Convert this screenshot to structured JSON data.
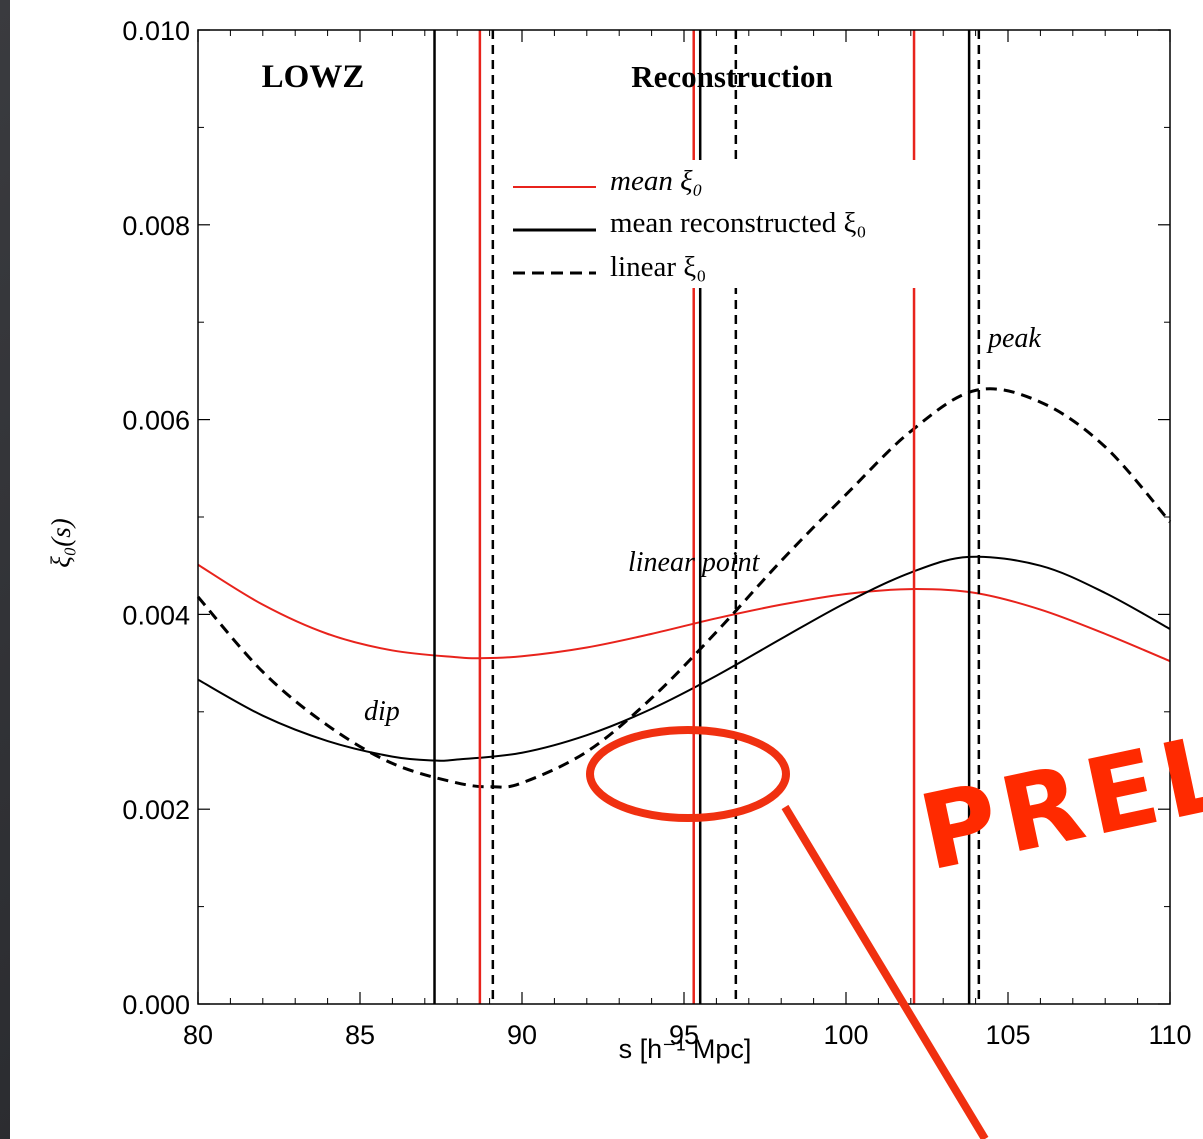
{
  "chart_data": {
    "type": "line",
    "title": "LOWZ",
    "subtitle": "Reconstruction",
    "xlabel": "s  [h⁻¹ Mpc]",
    "ylabel": "ξ₀(s)",
    "xlim": [
      80,
      110
    ],
    "ylim": [
      0,
      0.01
    ],
    "xticks": [
      80,
      85,
      90,
      95,
      100,
      105,
      110
    ],
    "yticks": [
      0.0,
      0.002,
      0.004,
      0.006,
      0.008,
      0.01
    ],
    "ytick_labels": [
      "0.000",
      "0.002",
      "0.004",
      "0.006",
      "0.008",
      "0.010"
    ],
    "xtick_labels": [
      "80",
      "85",
      "90",
      "95",
      "100",
      "105",
      "110"
    ],
    "grid": false,
    "legend_position": "upper-center",
    "series": [
      {
        "name": "mean ξ₀",
        "color": "#e8231c",
        "style": "solid",
        "x": [
          80,
          82,
          84,
          86,
          88,
          88.7,
          90,
          92,
          94,
          96,
          98,
          100,
          102,
          104,
          106,
          108,
          110
        ],
        "y": [
          0.00451,
          0.0041,
          0.0038,
          0.00363,
          0.00356,
          0.00355,
          0.00357,
          0.00366,
          0.0038,
          0.00396,
          0.0041,
          0.00421,
          0.00426,
          0.00422,
          0.00405,
          0.0038,
          0.00352
        ]
      },
      {
        "name": "mean reconstructed ξ₀",
        "color": "#000000",
        "style": "solid",
        "x": [
          80,
          82,
          84,
          86,
          87.3,
          88,
          90,
          92,
          94,
          96,
          98,
          100,
          102,
          103.8,
          106,
          108,
          110
        ],
        "y": [
          0.00333,
          0.00296,
          0.0027,
          0.00254,
          0.0025,
          0.00251,
          0.00258,
          0.00276,
          0.00303,
          0.00337,
          0.00375,
          0.00412,
          0.00443,
          0.00459,
          0.0045,
          0.00422,
          0.00385
        ]
      },
      {
        "name": "linear ξ₀",
        "color": "#000000",
        "style": "dashed",
        "x": [
          80,
          82,
          84,
          86,
          88,
          89.1,
          90,
          92,
          94,
          96,
          98,
          100,
          102,
          104,
          106,
          108,
          110
        ],
        "y": [
          0.00418,
          0.00341,
          0.00286,
          0.00247,
          0.00227,
          0.00223,
          0.00227,
          0.00259,
          0.00314,
          0.00382,
          0.00455,
          0.00523,
          0.00588,
          0.0063,
          0.00618,
          0.00572,
          0.00495
        ]
      }
    ],
    "vertical_lines": [
      {
        "x": 87.3,
        "color": "#000000",
        "style": "solid"
      },
      {
        "x": 88.7,
        "color": "#e8231c",
        "style": "solid"
      },
      {
        "x": 89.1,
        "color": "#000000",
        "style": "dashed"
      },
      {
        "x": 95.3,
        "color": "#e8231c",
        "style": "solid"
      },
      {
        "x": 95.5,
        "color": "#000000",
        "style": "solid"
      },
      {
        "x": 96.6,
        "color": "#000000",
        "style": "dashed"
      },
      {
        "x": 102.1,
        "color": "#e8231c",
        "style": "solid"
      },
      {
        "x": 103.8,
        "color": "#000000",
        "style": "solid"
      },
      {
        "x": 104.1,
        "color": "#000000",
        "style": "dashed"
      }
    ],
    "annotations": [
      {
        "text": "dip",
        "x": 86.0,
        "y": 0.0029
      },
      {
        "text": "linear point",
        "x": 97.5,
        "y": 0.0042
      },
      {
        "text": "peak",
        "x": 106.5,
        "y": 0.0067
      }
    ]
  },
  "overlay": {
    "stamp_text": "PREL",
    "stamp_color": "#ff2a00"
  }
}
